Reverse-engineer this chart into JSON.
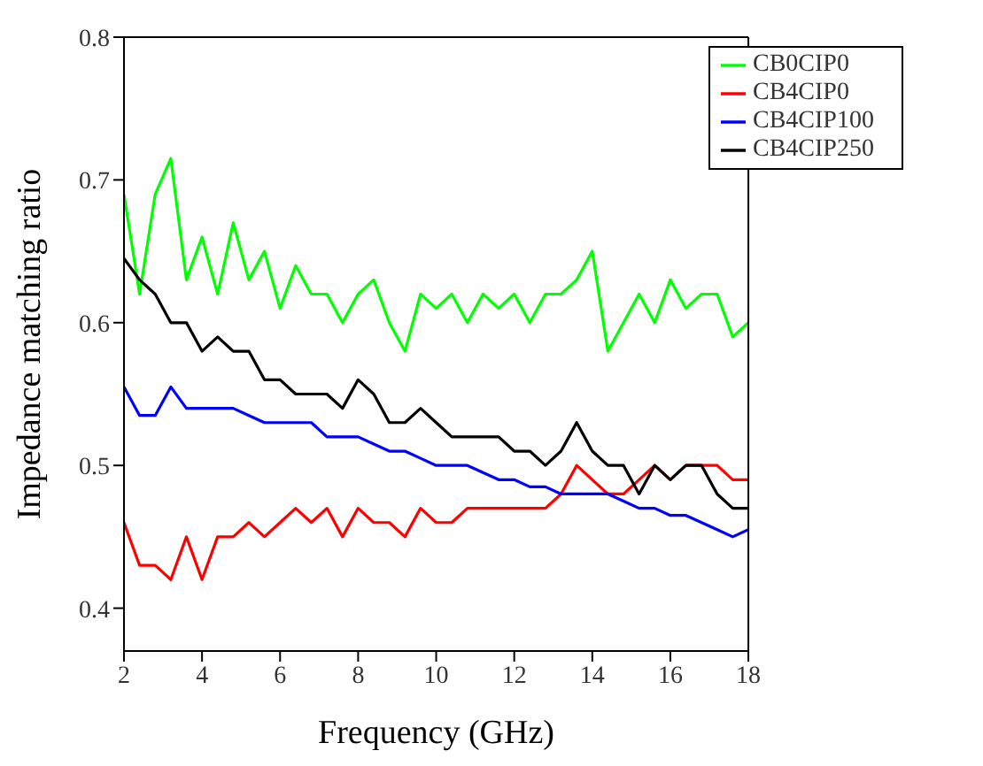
{
  "chart_data": {
    "type": "line",
    "xlabel": "Frequency (GHz)",
    "ylabel": "Impedance matching ratio",
    "x": [
      2,
      2.4,
      2.8,
      3.2,
      3.6,
      4,
      4.4,
      4.8,
      5.2,
      5.6,
      6,
      6.4,
      6.8,
      7.2,
      7.6,
      8,
      8.4,
      8.8,
      9.2,
      9.6,
      10,
      10.4,
      10.8,
      11.2,
      11.6,
      12,
      12.4,
      12.8,
      13.2,
      13.6,
      14,
      14.4,
      14.8,
      15.2,
      15.6,
      16,
      16.4,
      16.8,
      17.2,
      17.6,
      18
    ],
    "xlim": [
      2,
      18
    ],
    "xticks": [
      2,
      4,
      6,
      8,
      10,
      12,
      14,
      16,
      18
    ],
    "ylim": [
      0.37,
      0.8
    ],
    "yticks": [
      0.4,
      0.5,
      0.6,
      0.7,
      0.8
    ],
    "grid": false,
    "legend": "top right",
    "marker": "none",
    "line_style": "solid",
    "series": [
      {
        "name": "CB0CIP0",
        "color": "#00ff00",
        "values": [
          0.69,
          0.62,
          0.69,
          0.715,
          0.63,
          0.66,
          0.62,
          0.67,
          0.63,
          0.65,
          0.61,
          0.64,
          0.62,
          0.62,
          0.6,
          0.62,
          0.63,
          0.6,
          0.58,
          0.62,
          0.61,
          0.62,
          0.6,
          0.62,
          0.61,
          0.62,
          0.6,
          0.62,
          0.62,
          0.63,
          0.65,
          0.58,
          0.6,
          0.62,
          0.6,
          0.63,
          0.61,
          0.62,
          0.62,
          0.59,
          0.6
        ]
      },
      {
        "name": "CB4CIP0",
        "color": "#ff0000",
        "values": [
          0.46,
          0.43,
          0.43,
          0.42,
          0.45,
          0.42,
          0.45,
          0.45,
          0.46,
          0.45,
          0.46,
          0.47,
          0.46,
          0.47,
          0.45,
          0.47,
          0.46,
          0.46,
          0.45,
          0.47,
          0.46,
          0.46,
          0.47,
          0.47,
          0.47,
          0.47,
          0.47,
          0.47,
          0.48,
          0.5,
          0.49,
          0.48,
          0.48,
          0.49,
          0.5,
          0.49,
          0.5,
          0.5,
          0.5,
          0.49,
          0.49
        ]
      },
      {
        "name": "CB4CIP100",
        "color": "#0000ff",
        "values": [
          0.555,
          0.535,
          0.535,
          0.555,
          0.54,
          0.54,
          0.54,
          0.54,
          0.535,
          0.53,
          0.53,
          0.53,
          0.53,
          0.52,
          0.52,
          0.52,
          0.515,
          0.51,
          0.51,
          0.505,
          0.5,
          0.5,
          0.5,
          0.495,
          0.49,
          0.49,
          0.485,
          0.485,
          0.48,
          0.48,
          0.48,
          0.48,
          0.475,
          0.47,
          0.47,
          0.465,
          0.465,
          0.46,
          0.455,
          0.45,
          0.455
        ]
      },
      {
        "name": "CB4CIP250",
        "color": "#000000",
        "values": [
          0.645,
          0.63,
          0.62,
          0.6,
          0.6,
          0.58,
          0.59,
          0.58,
          0.58,
          0.56,
          0.56,
          0.55,
          0.55,
          0.55,
          0.54,
          0.56,
          0.55,
          0.53,
          0.53,
          0.54,
          0.53,
          0.52,
          0.52,
          0.52,
          0.52,
          0.51,
          0.51,
          0.5,
          0.51,
          0.53,
          0.51,
          0.5,
          0.5,
          0.48,
          0.5,
          0.49,
          0.5,
          0.5,
          0.48,
          0.47,
          0.47
        ]
      }
    ]
  }
}
